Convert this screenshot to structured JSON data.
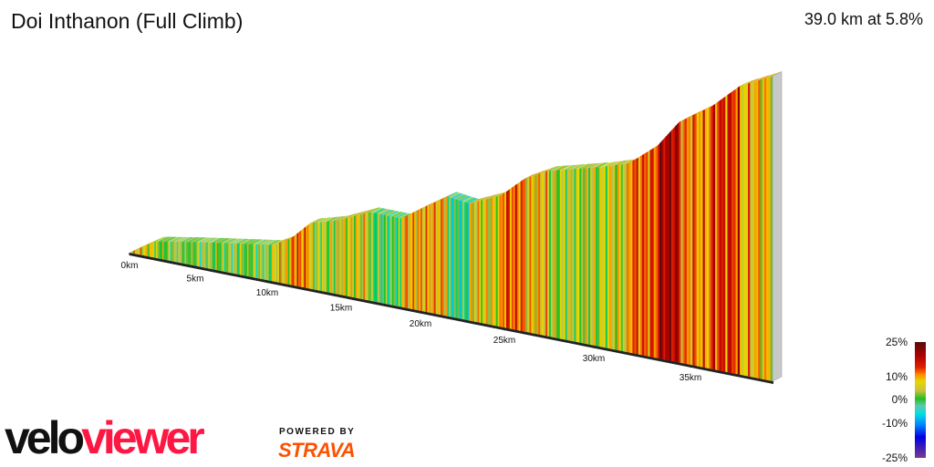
{
  "header": {
    "title": "Doi Inthanon (Full Climb)",
    "summary": "39.0 km at 5.8%"
  },
  "chart_data": {
    "type": "area",
    "title": "Doi Inthanon (Full Climb)",
    "distance_km": [
      0,
      1.94,
      6.1,
      10.4,
      11.6,
      12.9,
      14.8,
      16.8,
      18.8,
      20.2,
      21.6,
      22.9,
      24.8,
      26.1,
      27.4,
      30.4,
      31.8,
      33.3,
      34.4,
      36.0,
      37.4,
      39.0
    ],
    "elevation_gain_m": [
      0,
      122,
      196,
      271,
      345,
      487,
      548,
      657,
      657,
      772,
      887,
      867,
      975,
      1131,
      1225,
      1334,
      1401,
      1577,
      1781,
      1943,
      2139,
      2261
    ],
    "x_ticks": [
      {
        "km": 0,
        "label": "0km"
      },
      {
        "km": 5,
        "label": "5km"
      },
      {
        "km": 10,
        "label": "10km"
      },
      {
        "km": 15,
        "label": "15km"
      },
      {
        "km": 20,
        "label": "20km"
      },
      {
        "km": 25,
        "label": "25km"
      },
      {
        "km": 30,
        "label": "30km"
      },
      {
        "km": 35,
        "label": "35km"
      }
    ],
    "xlim": [
      0,
      39
    ],
    "color_scale": {
      "labels": [
        "25%",
        "10%",
        "0%",
        "-10%",
        "-25%"
      ],
      "stops": [
        {
          "grade": -25,
          "color": "#7a3b8f"
        },
        {
          "grade": -15,
          "color": "#0000e0"
        },
        {
          "grade": -10,
          "color": "#0080ff"
        },
        {
          "grade": -5,
          "color": "#00e0e0"
        },
        {
          "grade": 0,
          "color": "#20c020"
        },
        {
          "grade": 3,
          "color": "#b8c050"
        },
        {
          "grade": 7,
          "color": "#e6d800"
        },
        {
          "grade": 10,
          "color": "#ff8a00"
        },
        {
          "grade": 14,
          "color": "#e02000"
        },
        {
          "grade": 18,
          "color": "#b00000"
        },
        {
          "grade": 25,
          "color": "#5a0a0a"
        }
      ]
    }
  },
  "branding": {
    "logo_part1": "velo",
    "logo_part2": "viewer",
    "powered_by": "POWERED BY",
    "strava": "STRAVA"
  }
}
